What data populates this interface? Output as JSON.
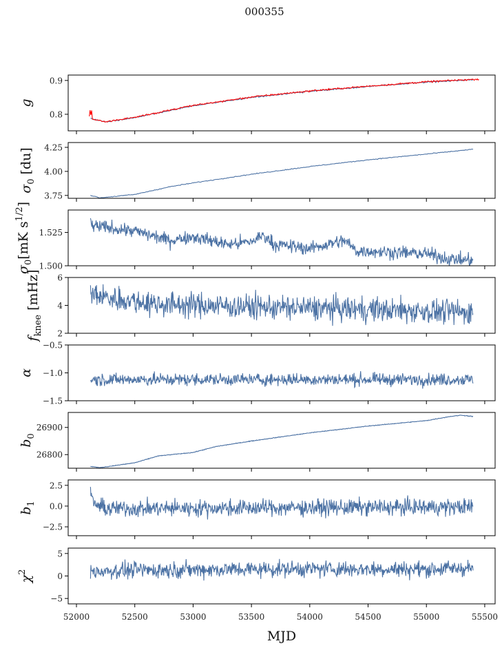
{
  "title": "000355",
  "xlabel": "MJD",
  "colors": {
    "series": "#4c72a4",
    "overlay": "#ff0000",
    "axis": "#000000"
  },
  "chart_data": {
    "type": "line",
    "title": "000355",
    "xlabel": "MJD",
    "xlim": [
      51929,
      55589
    ],
    "xticks": [
      52000,
      52500,
      53000,
      53500,
      54000,
      54500,
      55000,
      55500
    ],
    "xtick_labels": [
      "52000",
      "52500",
      "53000",
      "53500",
      "54000",
      "54500",
      "55000",
      "55500"
    ],
    "grid": false,
    "panels": [
      {
        "ylabel": {
          "main": "g",
          "sub": "",
          "sup": "",
          "rest": ""
        },
        "ylim": [
          0.751,
          0.916
        ],
        "yticks": [
          0.8,
          0.9
        ],
        "ytick_labels": [
          "0.8",
          "0.9"
        ],
        "trend": {
          "x": [
            52120,
            52250,
            52500,
            53000,
            53500,
            54000,
            54500,
            55000,
            55400
          ],
          "y": [
            0.788,
            0.777,
            0.79,
            0.825,
            0.85,
            0.868,
            0.882,
            0.895,
            0.903
          ]
        },
        "noise": 0.001,
        "overlay": {
          "name": "red",
          "x": [
            52110,
            52120,
            52125,
            52130,
            52135,
            52250,
            52500,
            53000,
            53500,
            54000,
            54500,
            55000,
            55450
          ],
          "y": [
            0.793,
            0.82,
            0.79,
            0.81,
            0.785,
            0.778,
            0.791,
            0.826,
            0.851,
            0.869,
            0.883,
            0.896,
            0.904
          ],
          "noise": 0.0012
        }
      },
      {
        "ylabel": {
          "main": "σ",
          "sub": "0",
          "sup": "",
          "rest": " [du]"
        },
        "ylim": [
          3.72,
          4.3
        ],
        "yticks": [
          3.75,
          4.0,
          4.25
        ],
        "ytick_labels": [
          "3.75",
          "4.00",
          "4.25"
        ],
        "trend": {
          "x": [
            52120,
            52200,
            52500,
            52800,
            53000,
            53500,
            54000,
            54500,
            55000,
            55400
          ],
          "y": [
            3.75,
            3.725,
            3.76,
            3.84,
            3.88,
            3.97,
            4.05,
            4.12,
            4.18,
            4.23
          ]
        },
        "noise": 0.002
      },
      {
        "ylabel": {
          "main": "σ",
          "sub": "0",
          "sup": "",
          "rest": "[mK s",
          "sup2": "1/2",
          "end": "]"
        },
        "ylim": [
          1.5,
          1.5418
        ],
        "yticks": [
          1.5,
          1.525
        ],
        "ytick_labels": [
          "1.500",
          "1.525"
        ],
        "trend": {
          "x": [
            52120,
            52130,
            52500,
            52800,
            53000,
            53300,
            53500,
            53600,
            53700,
            54000,
            54300,
            54400,
            54500,
            55000,
            55200,
            55400
          ],
          "y": [
            1.536,
            1.53,
            1.526,
            1.519,
            1.522,
            1.516,
            1.518,
            1.523,
            1.516,
            1.513,
            1.519,
            1.511,
            1.511,
            1.509,
            1.505,
            1.504
          ]
        },
        "noise": 0.0025
      },
      {
        "ylabel": {
          "main": "f",
          "sub": "knee",
          "sup": "",
          "rest": " [mHz]"
        },
        "ylim": [
          2,
          6
        ],
        "yticks": [
          2,
          4,
          6
        ],
        "ytick_labels": [
          "2",
          "4",
          "6"
        ],
        "trend": {
          "x": [
            52120,
            52300,
            52700,
            53500,
            54500,
            55400
          ],
          "y": [
            4.8,
            4.5,
            4.1,
            3.9,
            3.7,
            3.5
          ]
        },
        "noise": 0.45
      },
      {
        "ylabel": {
          "main": "α",
          "sub": "",
          "sup": "",
          "rest": ""
        },
        "ylim": [
          -1.5,
          -0.5
        ],
        "yticks": [
          -1.5,
          -1.0,
          -0.5
        ],
        "ytick_labels": [
          "−1.5",
          "−1.0",
          "−0.5"
        ],
        "trend": {
          "x": [
            52120,
            55400
          ],
          "y": [
            -1.12,
            -1.12
          ]
        },
        "noise": 0.055
      },
      {
        "ylabel": {
          "main": "b",
          "sub": "0",
          "sup": "",
          "rest": ""
        },
        "ylim": [
          26750,
          26955
        ],
        "yticks": [
          26800,
          26900
        ],
        "ytick_labels": [
          "26800",
          "26900"
        ],
        "trend": {
          "x": [
            52120,
            52200,
            52500,
            52700,
            53000,
            53200,
            53500,
            54000,
            54500,
            55000,
            55200,
            55300,
            55400
          ],
          "y": [
            26757,
            26752,
            26770,
            26795,
            26808,
            26830,
            26850,
            26880,
            26905,
            26925,
            26940,
            26945,
            26940
          ]
        },
        "noise": 0.6
      },
      {
        "ylabel": {
          "main": "b",
          "sub": "1",
          "sup": "",
          "rest": ""
        },
        "ylim": [
          -3.57,
          3.15
        ],
        "yticks": [
          -2.5,
          0,
          2.5
        ],
        "ytick_labels": [
          "−2.5",
          "0.0",
          "2.5"
        ],
        "trend": {
          "x": [
            52120,
            52130,
            52160,
            52250,
            55400
          ],
          "y": [
            2.4,
            0.8,
            0.2,
            -0.3,
            -0.1
          ]
        },
        "noise": 0.5
      },
      {
        "ylabel": {
          "main": "χ",
          "sub": "",
          "sup": "2",
          "rest": ""
        },
        "ylim": [
          -6.2,
          6.2
        ],
        "yticks": [
          -5,
          0,
          5
        ],
        "ytick_labels": [
          "−5",
          "0",
          "5"
        ],
        "trend": {
          "x": [
            52120,
            52500,
            53000,
            54000,
            55000,
            55400
          ],
          "y": [
            1.0,
            1.3,
            1.4,
            1.6,
            1.5,
            1.8
          ]
        },
        "noise": 0.9
      }
    ]
  }
}
